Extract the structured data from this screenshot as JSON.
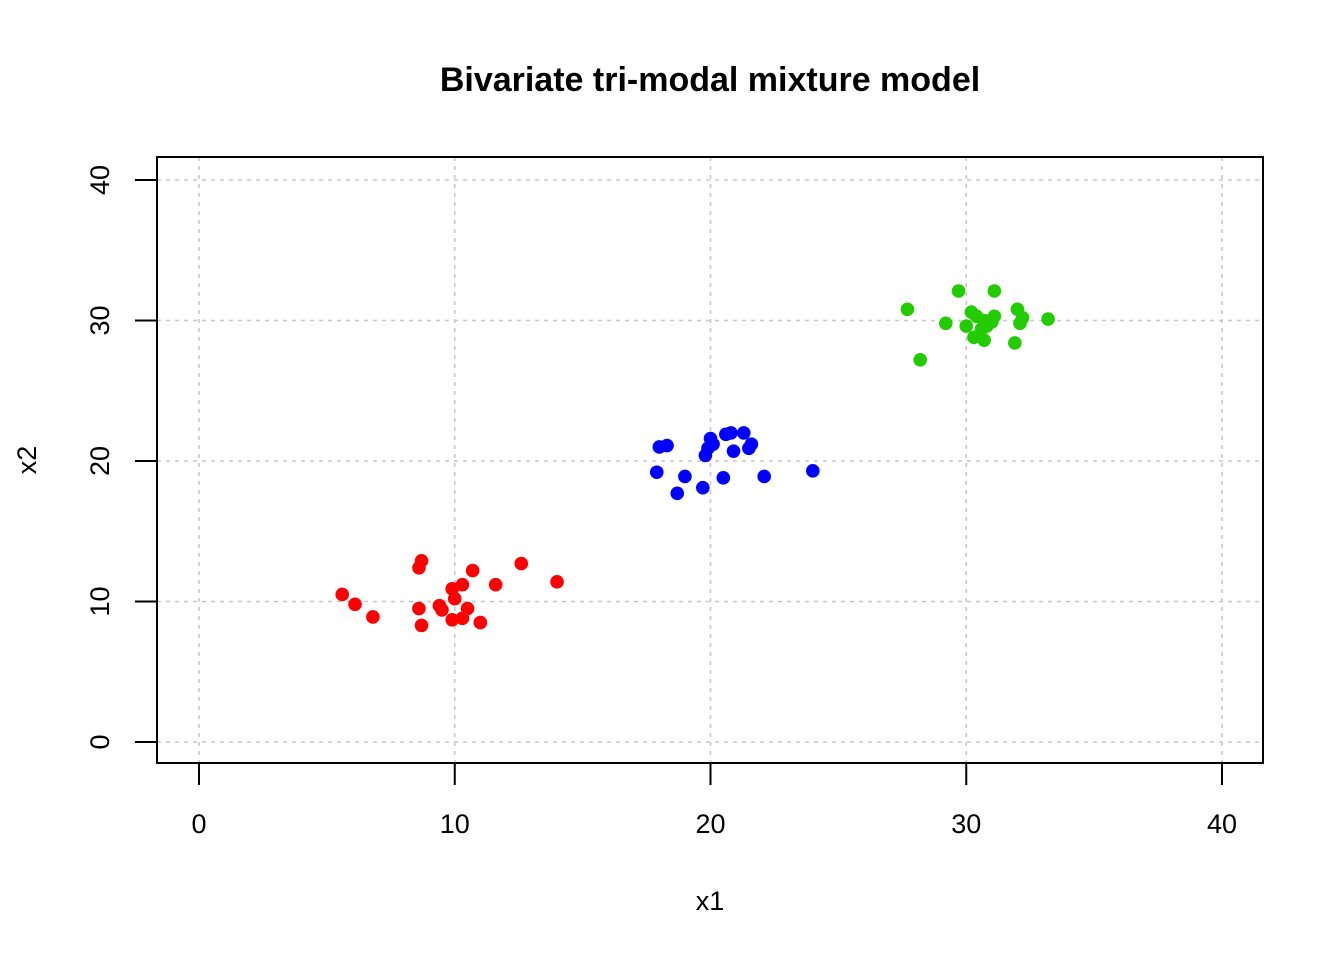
{
  "chart_data": {
    "type": "scatter",
    "title": "Bivariate tri-modal mixture model",
    "xlabel": "x1",
    "ylabel": "x2",
    "xlim": [
      0,
      40
    ],
    "ylim": [
      0,
      40
    ],
    "xticks": [
      0,
      10,
      20,
      30,
      40
    ],
    "yticks": [
      0,
      10,
      20,
      30,
      40
    ],
    "grid": true,
    "series": [
      {
        "color": "#ff0000",
        "points": [
          [
            5.6,
            10.5
          ],
          [
            6.1,
            9.8
          ],
          [
            6.8,
            8.9
          ],
          [
            8.6,
            9.5
          ],
          [
            8.7,
            8.3
          ],
          [
            8.6,
            12.4
          ],
          [
            8.7,
            12.9
          ],
          [
            9.4,
            9.7
          ],
          [
            9.5,
            9.4
          ],
          [
            9.9,
            10.9
          ],
          [
            10.0,
            10.2
          ],
          [
            9.9,
            8.7
          ],
          [
            10.3,
            11.2
          ],
          [
            10.3,
            8.8
          ],
          [
            10.5,
            9.5
          ],
          [
            10.7,
            12.2
          ],
          [
            11.0,
            8.5
          ],
          [
            11.6,
            11.2
          ],
          [
            12.6,
            12.7
          ],
          [
            14.0,
            11.4
          ]
        ]
      },
      {
        "color": "#0000ff",
        "points": [
          [
            17.9,
            19.2
          ],
          [
            18.0,
            21.0
          ],
          [
            18.3,
            21.1
          ],
          [
            18.7,
            17.7
          ],
          [
            19.0,
            18.9
          ],
          [
            19.7,
            18.1
          ],
          [
            19.8,
            20.4
          ],
          [
            19.9,
            20.9
          ],
          [
            20.0,
            21.6
          ],
          [
            20.1,
            21.2
          ],
          [
            20.5,
            18.8
          ],
          [
            20.6,
            21.9
          ],
          [
            20.8,
            22.0
          ],
          [
            20.9,
            20.7
          ],
          [
            21.3,
            22.0
          ],
          [
            21.5,
            20.9
          ],
          [
            21.6,
            21.2
          ],
          [
            22.1,
            18.9
          ],
          [
            24.0,
            19.3
          ]
        ]
      },
      {
        "color": "#22cc00",
        "points": [
          [
            27.7,
            30.8
          ],
          [
            28.2,
            27.2
          ],
          [
            29.2,
            29.8
          ],
          [
            29.7,
            32.1
          ],
          [
            30.0,
            29.6
          ],
          [
            30.2,
            30.6
          ],
          [
            30.3,
            28.8
          ],
          [
            30.4,
            30.3
          ],
          [
            30.6,
            29.4
          ],
          [
            30.7,
            30.0
          ],
          [
            30.7,
            28.6
          ],
          [
            30.8,
            29.6
          ],
          [
            31.0,
            29.9
          ],
          [
            31.1,
            30.3
          ],
          [
            31.1,
            32.1
          ],
          [
            31.9,
            28.4
          ],
          [
            32.0,
            30.8
          ],
          [
            32.1,
            29.8
          ],
          [
            32.2,
            30.2
          ],
          [
            33.2,
            30.1
          ]
        ]
      }
    ]
  }
}
